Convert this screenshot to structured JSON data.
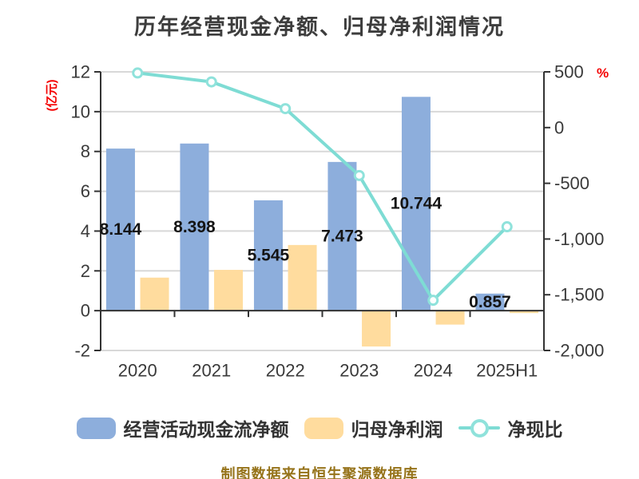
{
  "chart": {
    "title": "历年经营现金净额、归母净利润情况",
    "left_axis_unit": "(亿元)",
    "right_axis_unit": "%",
    "source_note": "制图数据来自恒生聚源数据库"
  },
  "theme": {
    "background": "#FFFFFF",
    "bar_blue": "#8DAEDC",
    "bar_yellow": "#FFDC9E",
    "line_teal": "#7EDCD4",
    "marker_ring": "#8FE2DB",
    "marker_fill": "#FFFFFF",
    "grid_color": "#D8D8D8",
    "axis_color": "#333333",
    "tick_color": "#3A3A3A",
    "title_color": "#3D3D3D",
    "accent_red": "#F40000",
    "footer_gold": "#96731A",
    "data_label_color": "#141414"
  },
  "chart_data": {
    "type": "bar",
    "title": "历年经营现金净额、归母净利润情况",
    "categories": [
      "2020",
      "2021",
      "2022",
      "2023",
      "2024",
      "2025H1"
    ],
    "series": [
      {
        "name": "经营活动现金流净额",
        "type": "bar",
        "axis": "left",
        "color": "#8DAEDC",
        "values": [
          8.144,
          8.398,
          5.545,
          7.473,
          10.744,
          0.857
        ],
        "data_labels": [
          "8.144",
          "8.398",
          "5.545",
          "7.473",
          "10.744",
          "0.857"
        ]
      },
      {
        "name": "归母净利润",
        "type": "bar",
        "axis": "left",
        "color": "#FFDC9E",
        "values": [
          1.66,
          2.05,
          3.3,
          -1.8,
          -0.7,
          -0.12
        ],
        "data_labels": []
      },
      {
        "name": "净现比",
        "type": "line",
        "axis": "right",
        "color": "#7EDCD4",
        "values": [
          490,
          410,
          170,
          -430,
          -1550,
          -890
        ],
        "data_labels": []
      }
    ],
    "left_axis": {
      "unit": "(亿元)",
      "min": -2,
      "max": 12,
      "ticks": [
        12,
        10,
        8,
        6,
        4,
        2,
        0,
        -2
      ]
    },
    "right_axis": {
      "unit": "%",
      "min": -2000,
      "max": 500,
      "ticks": [
        500,
        0,
        -500,
        -1000,
        -1500,
        -2000
      ],
      "tick_labels": [
        "500",
        "0",
        "-500",
        "-1,000",
        "-1,500",
        "-2,000"
      ]
    },
    "grid": true,
    "legend_position": "bottom"
  },
  "legend": {
    "items": [
      {
        "label": "经营活动现金流净额",
        "swatch": "bar",
        "color": "#8DAEDC"
      },
      {
        "label": "归母净利润",
        "swatch": "bar",
        "color": "#FFDC9E"
      },
      {
        "label": "净现比",
        "swatch": "line",
        "color": "#7EDCD4"
      }
    ]
  }
}
